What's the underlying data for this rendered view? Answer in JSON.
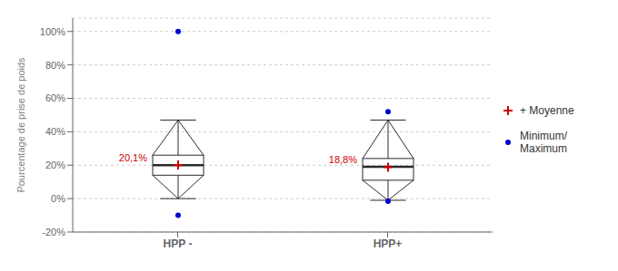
{
  "chart_data": {
    "type": "box",
    "categories": [
      "HPP -",
      "HPP+"
    ],
    "ylabel": "Pourcentage de prise de poids",
    "ylim": [
      -20,
      108
    ],
    "yticks": [
      {
        "value": -20,
        "label": "-20%"
      },
      {
        "value": 0,
        "label": "0%"
      },
      {
        "value": 20,
        "label": "20%"
      },
      {
        "value": 40,
        "label": "40%"
      },
      {
        "value": 60,
        "label": "60%"
      },
      {
        "value": 80,
        "label": "80%"
      },
      {
        "value": 100,
        "label": "100%"
      }
    ],
    "grid": true,
    "legend": "right",
    "box": {
      "color": "#2b2b2b",
      "q1": [
        14,
        11
      ],
      "median": [
        20,
        19
      ],
      "q3": [
        26,
        24
      ],
      "whisker_low": [
        0,
        -1
      ],
      "whisker_high": [
        47,
        47
      ]
    },
    "series": [
      {
        "name": "+ Moyenne",
        "color": "#cc0000",
        "marker": "plus",
        "data_labels": true,
        "values": [
          20.1,
          18.8
        ],
        "value_labels": [
          "20,1%",
          "18,8%"
        ]
      },
      {
        "name": "Minimum/\nMaximum",
        "color": "#0000cc",
        "marker": "circle",
        "values": [
          [
            -10,
            100
          ],
          [
            -1.5,
            52
          ]
        ]
      }
    ]
  }
}
